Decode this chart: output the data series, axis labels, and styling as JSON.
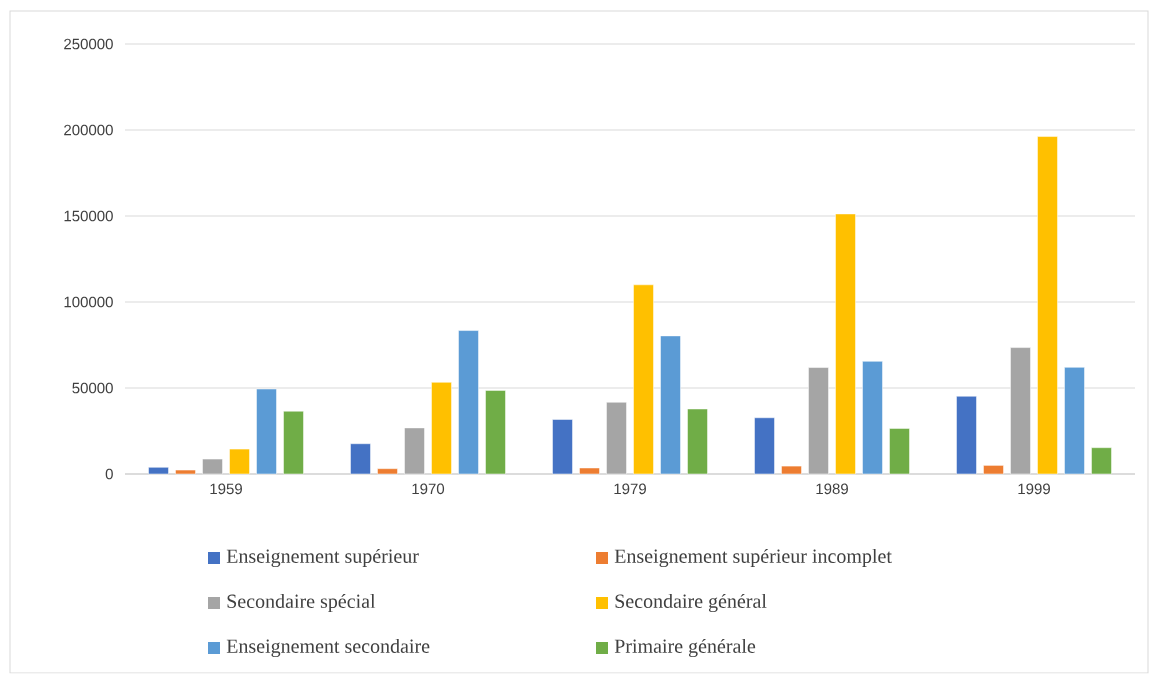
{
  "chart_data": {
    "type": "bar",
    "categories": [
      "1959",
      "1970",
      "1979",
      "1989",
      "1999"
    ],
    "series": [
      {
        "name": "Enseignement supérieur",
        "color": "#4472c4",
        "values": [
          3900,
          17600,
          31700,
          32700,
          45200
        ]
      },
      {
        "name": "Enseignement supérieur incomplet",
        "color": "#ed7d31",
        "values": [
          2300,
          3100,
          3500,
          4600,
          5000
        ]
      },
      {
        "name": "Secondaire spécial",
        "color": "#a5a5a5",
        "values": [
          8700,
          26800,
          41700,
          61900,
          73500
        ]
      },
      {
        "name": "Secondaire général",
        "color": "#ffc000",
        "values": [
          14500,
          53300,
          110000,
          151200,
          196200
        ]
      },
      {
        "name": "Enseignement secondaire",
        "color": "#5b9bd5",
        "values": [
          49400,
          83400,
          80300,
          65500,
          62000
        ]
      },
      {
        "name": "Primaire générale",
        "color": "#70ad47",
        "values": [
          36500,
          48600,
          37800,
          26500,
          15300
        ]
      }
    ],
    "ylim": [
      0,
      250000
    ],
    "yticks": [
      0,
      50000,
      100000,
      150000,
      200000,
      250000
    ],
    "grid": "y",
    "legend": "bottom"
  }
}
